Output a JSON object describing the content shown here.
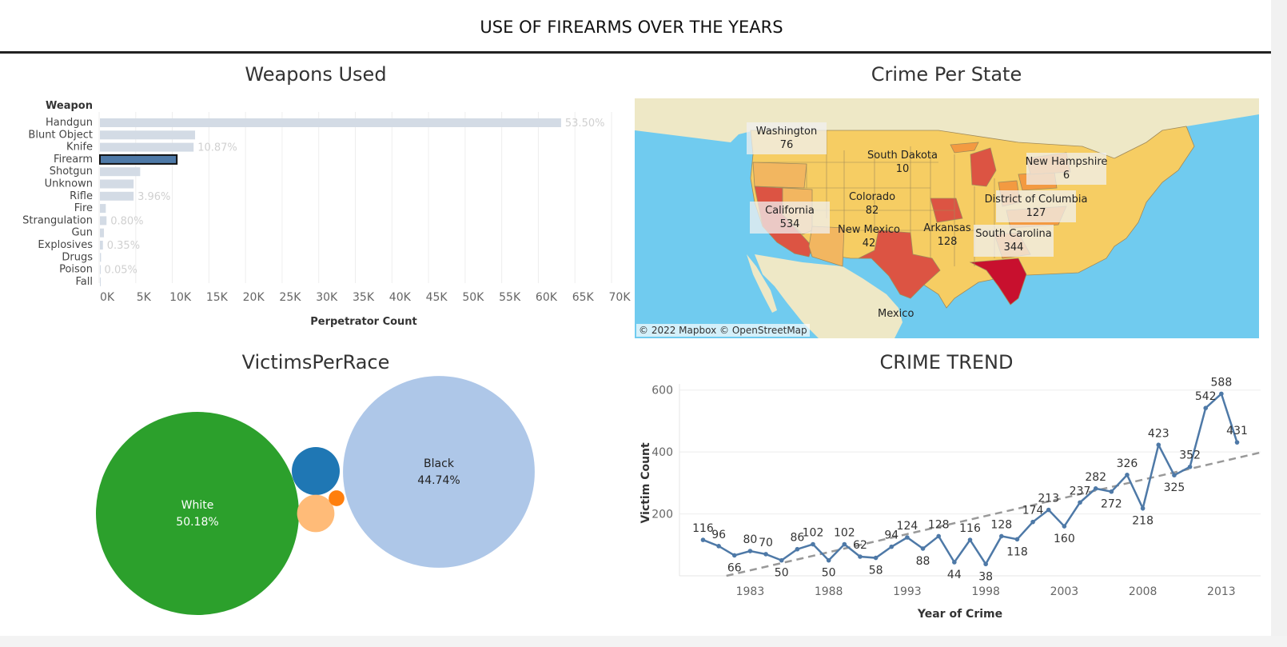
{
  "header": {
    "title": "USE OF FIREARMS OVER THE YEARS"
  },
  "weapons": {
    "title": "Weapons Used",
    "chart_data": {
      "type": "bar",
      "orientation": "horizontal",
      "title": "",
      "ylabel": "Weapon",
      "xlabel": "Perpetrator Count",
      "categories": [
        "Handgun",
        "Blunt Object",
        "Knife",
        "Firearm",
        "Shotgun",
        "Unknown",
        "Rifle",
        "Fire",
        "Strangulation",
        "Gun",
        "Explosives",
        "Drugs",
        "Poison",
        "Fall"
      ],
      "values": [
        63000,
        13000,
        12800,
        10500,
        5500,
        4600,
        4600,
        800,
        900,
        550,
        410,
        150,
        60,
        20
      ],
      "labels": [
        "53.50%",
        "",
        "10.87%",
        "",
        "",
        "",
        "3.96%",
        "",
        "0.80%",
        "",
        "0.35%",
        "",
        "0.05%",
        ""
      ],
      "highlight": "Firearm",
      "xticks": [
        "0K",
        "5K",
        "10K",
        "15K",
        "20K",
        "25K",
        "30K",
        "35K",
        "40K",
        "45K",
        "50K",
        "55K",
        "60K",
        "65K",
        "70K"
      ],
      "xlim": [
        0,
        70000
      ],
      "colors": {
        "bar": "#d3dbe5",
        "highlight": "#4e79a7"
      }
    }
  },
  "map": {
    "title": "Crime Per State",
    "attribution": "© 2022 Mapbox © OpenStreetMap",
    "country_label": "Mexico",
    "states": [
      {
        "name": "Washington",
        "value": "76"
      },
      {
        "name": "South Dakota",
        "value": "10"
      },
      {
        "name": "New Hampshire",
        "value": "6"
      },
      {
        "name": "Colorado",
        "value": "82"
      },
      {
        "name": "District of Columbia",
        "value": "127"
      },
      {
        "name": "California",
        "value": "534"
      },
      {
        "name": "New Mexico",
        "value": "42"
      },
      {
        "name": "Arkansas",
        "value": "128"
      },
      {
        "name": "South Carolina",
        "value": "344"
      }
    ],
    "colors": {
      "water": "#70cbef",
      "land": "#f0e9c8",
      "low": "#f6cd63",
      "mid": "#f39a41",
      "high": "#dc5443",
      "max": "#c8102e"
    }
  },
  "race": {
    "title": "VictimsPerRace",
    "chart_data": {
      "type": "bubble",
      "items": [
        {
          "name": "White",
          "pct": "50.18%",
          "value": 50.18,
          "color": "#2ca02c"
        },
        {
          "name": "Black",
          "pct": "44.74%",
          "value": 44.74,
          "color": "#aec7e8"
        },
        {
          "name": "",
          "pct": "",
          "value": 2.8,
          "color": "#1f77b4"
        },
        {
          "name": "",
          "pct": "",
          "value": 1.7,
          "color": "#ffbb78"
        },
        {
          "name": "",
          "pct": "",
          "value": 0.3,
          "color": "#ff7f0e"
        }
      ]
    }
  },
  "trend": {
    "title": "CRIME TREND",
    "chart_data": {
      "type": "line",
      "xlabel": "Year of Crime",
      "ylabel": "Victim Count",
      "x": [
        1980,
        1981,
        1982,
        1983,
        1984,
        1985,
        1986,
        1987,
        1988,
        1989,
        1990,
        1991,
        1992,
        1993,
        1994,
        1995,
        1996,
        1997,
        1998,
        1999,
        2000,
        2001,
        2002,
        2003,
        2004,
        2005,
        2006,
        2007,
        2008,
        2009,
        2010,
        2011,
        2012,
        2013,
        2014
      ],
      "y": [
        116,
        96,
        66,
        80,
        70,
        50,
        86,
        102,
        50,
        102,
        62,
        58,
        94,
        124,
        88,
        128,
        44,
        116,
        38,
        128,
        118,
        174,
        213,
        160,
        237,
        282,
        272,
        326,
        218,
        423,
        325,
        352,
        542,
        588,
        431
      ],
      "xticks": [
        "1983",
        "1988",
        "1993",
        "1998",
        "2003",
        "2008",
        "2013"
      ],
      "yticks": [
        "200",
        "400",
        "600"
      ],
      "ylim": [
        0,
        620
      ],
      "xlim": [
        1978.5,
        2015.5
      ],
      "trendline": true,
      "colors": {
        "line": "#4e79a7",
        "trend": "#999999"
      }
    }
  }
}
